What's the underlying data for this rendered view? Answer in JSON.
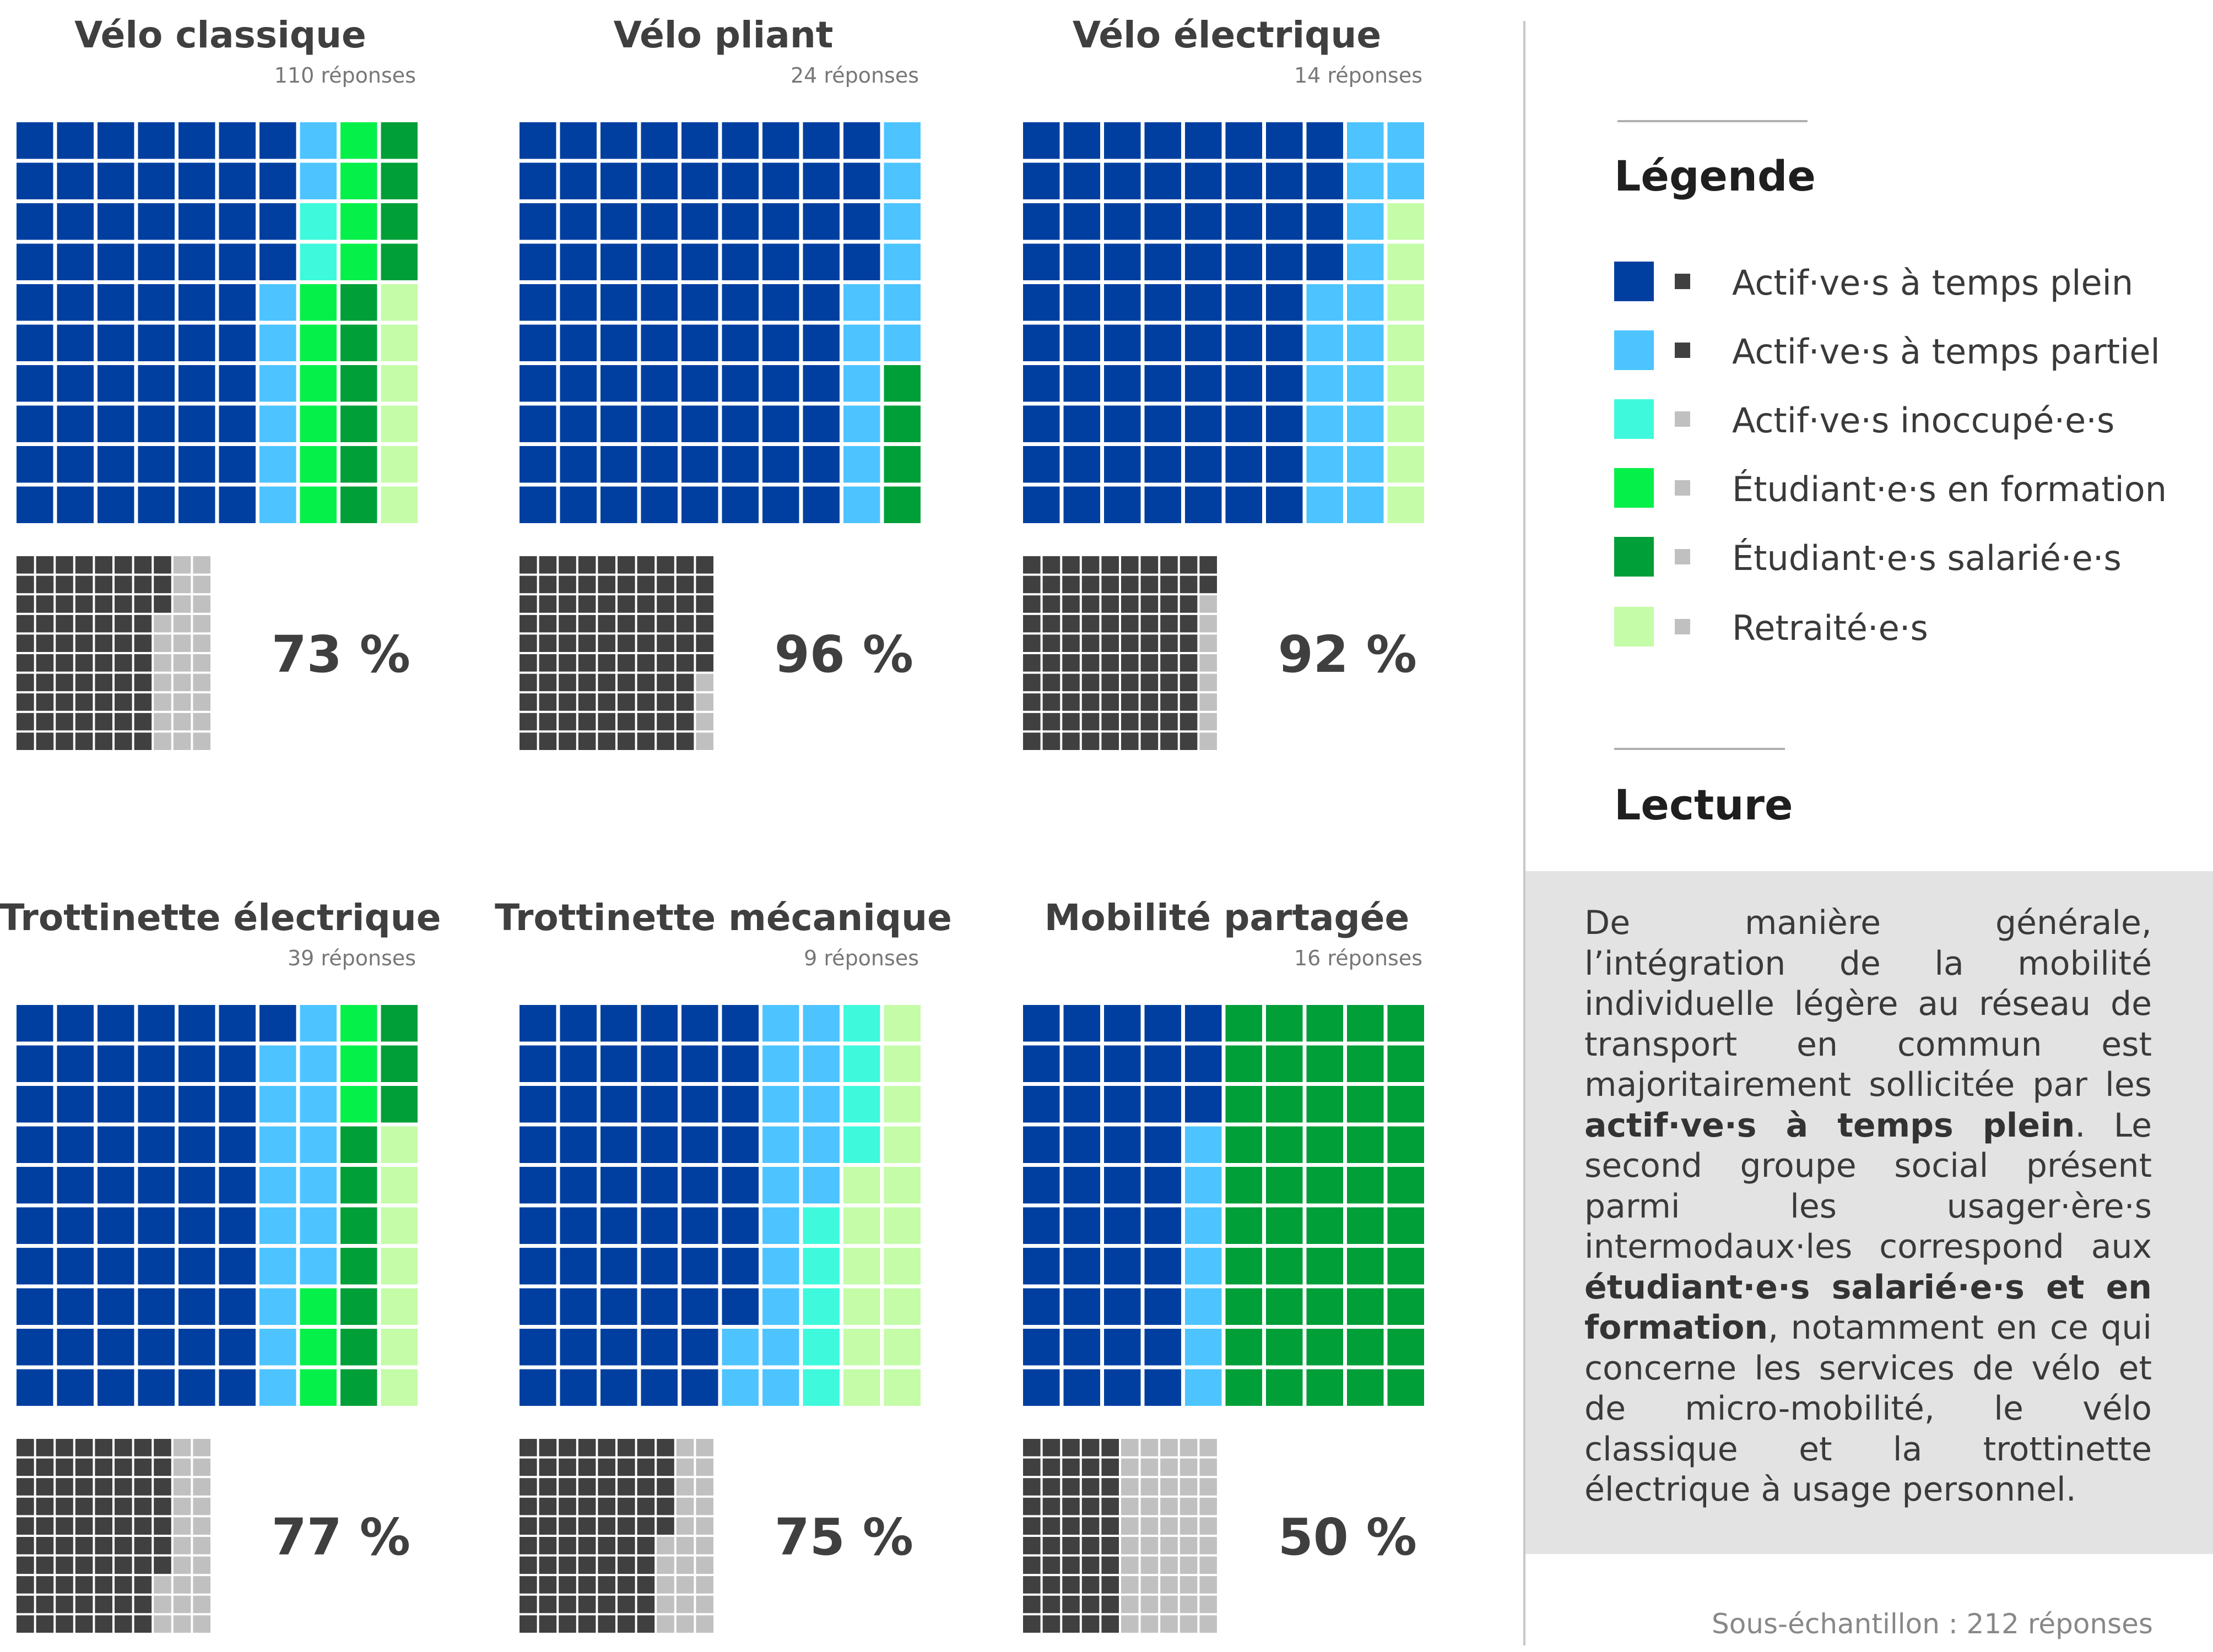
{
  "colors": {
    "actifs_temps_plein": "#003fa0",
    "actifs_temps_partiel": "#4dc4ff",
    "actifs_inoccupes": "#3ef9dc",
    "etudiants_formation": "#06f04a",
    "etudiants_salaries": "#009f38",
    "retraites": "#c4fca8",
    "working_mark": "#404040",
    "nonworking_mark": "#c0c0c0"
  },
  "legend": {
    "title": "Légende",
    "items": [
      {
        "key": "actifs_temps_plein",
        "label": "Actif·ve·s à temps plein",
        "mark": "working_mark"
      },
      {
        "key": "actifs_temps_partiel",
        "label": "Actif·ve·s à temps partiel",
        "mark": "working_mark"
      },
      {
        "key": "actifs_inoccupes",
        "label": "Actif·ve·s inoccupé·e·s",
        "mark": "nonworking_mark"
      },
      {
        "key": "etudiants_formation",
        "label": "Étudiant·e·s en formation",
        "mark": "nonworking_mark"
      },
      {
        "key": "etudiants_salaries",
        "label": "Étudiant·e·s salarié·e·s",
        "mark": "nonworking_mark"
      },
      {
        "key": "retraites",
        "label": "Retraité·e·s",
        "mark": "nonworking_mark"
      }
    ]
  },
  "reading": {
    "title": "Lecture",
    "p1": "De manière générale, l’intégration de la mobilité individuelle légère au réseau de transport en commun est majoritairement sollicitée par les ",
    "b1": "actif·ve·s à temps plein",
    "p2": ". Le second groupe social présent parmi les usager·ère·s intermodaux·les correspond aux ",
    "b2": "étudiant·e·s salarié·e·s et en formation",
    "p3": ", notamment en ce qui concerne les services de vélo et de micro-mobilité, le vélo classique et la trottinette électrique à usage personnel."
  },
  "footnote": "Sous-échantillon : 212 réponses",
  "chart_data": [
    {
      "type": "waffle",
      "title": "Vélo classique",
      "responses_label": "110 réponses",
      "percent_label": "73 %",
      "unit": "cases sur 100 (colonnes de haut en bas)",
      "categories": [
        "actifs_temps_plein",
        "actifs_temps_partiel",
        "actifs_inoccupes",
        "etudiants_formation",
        "etudiants_salaries",
        "retraites"
      ],
      "values": [
        64,
        8,
        2,
        10,
        10,
        6
      ],
      "secondary": {
        "working": 73,
        "nonworking": 27
      }
    },
    {
      "type": "waffle",
      "title": "Vélo pliant",
      "responses_label": "24 réponses",
      "percent_label": "96 %",
      "unit": "cases sur 100 (colonnes de haut en bas)",
      "categories": [
        "actifs_temps_plein",
        "actifs_temps_partiel",
        "actifs_inoccupes",
        "etudiants_formation",
        "etudiants_salaries",
        "retraites"
      ],
      "values": [
        84,
        12,
        0,
        0,
        4,
        0
      ],
      "secondary": {
        "working": 96,
        "nonworking": 4
      }
    },
    {
      "type": "waffle",
      "title": "Vélo électrique",
      "responses_label": "14 réponses",
      "percent_label": "92 %",
      "unit": "cases sur 100 (colonnes de haut en bas)",
      "categories": [
        "actifs_temps_plein",
        "actifs_temps_partiel",
        "actifs_inoccupes",
        "etudiants_formation",
        "etudiants_salaries",
        "retraites"
      ],
      "values": [
        74,
        18,
        0,
        0,
        0,
        8
      ],
      "secondary": {
        "working": 92,
        "nonworking": 8
      }
    },
    {
      "type": "waffle",
      "title": "Trottinette électrique",
      "responses_label": "39 réponses",
      "percent_label": "77 %",
      "unit": "cases sur 100 (colonnes de haut en bas)",
      "categories": [
        "actifs_temps_plein",
        "actifs_temps_partiel",
        "actifs_inoccupes",
        "etudiants_formation",
        "etudiants_salaries",
        "retraites"
      ],
      "values": [
        61,
        16,
        0,
        6,
        10,
        7
      ],
      "secondary": {
        "working": 77,
        "nonworking": 23
      }
    },
    {
      "type": "waffle",
      "title": "Trottinette mécanique",
      "responses_label": "9 réponses",
      "percent_label": "75 %",
      "unit": "cases sur 100 (colonnes de haut en bas)",
      "categories": [
        "actifs_temps_plein",
        "actifs_temps_partiel",
        "actifs_inoccupes",
        "etudiants_formation",
        "etudiants_salaries",
        "retraites"
      ],
      "values": [
        58,
        17,
        9,
        0,
        0,
        16
      ],
      "secondary": {
        "working": 75,
        "nonworking": 25
      }
    },
    {
      "type": "waffle",
      "title": "Mobilité partagée",
      "responses_label": "16 réponses",
      "percent_label": "50 %",
      "unit": "cases sur 100 (colonnes de haut en bas)",
      "categories": [
        "actifs_temps_plein",
        "actifs_temps_partiel",
        "actifs_inoccupes",
        "etudiants_formation",
        "etudiants_salaries",
        "retraites"
      ],
      "values": [
        43,
        7,
        0,
        0,
        50,
        0
      ],
      "secondary": {
        "working": 50,
        "nonworking": 50
      }
    }
  ]
}
